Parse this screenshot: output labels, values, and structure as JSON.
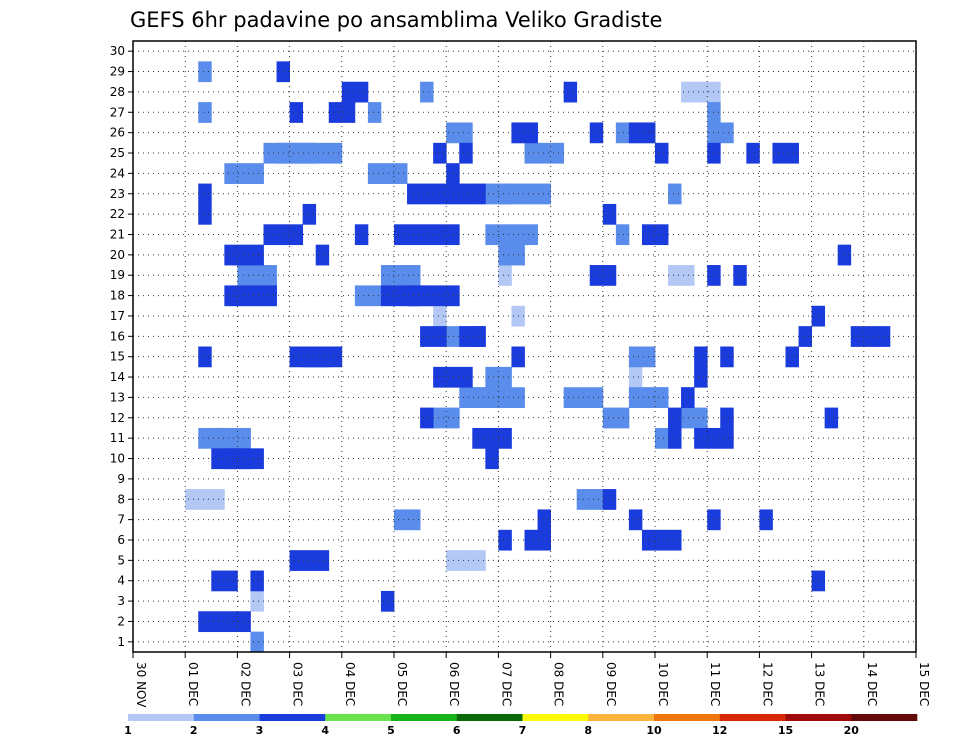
{
  "chart_data": {
    "type": "heatmap",
    "title": "GEFS 6hr padavine po ansamblima Veliko Gradiste",
    "x_tick_labels": [
      "30 NOV",
      "01 DEC",
      "02 DEC",
      "03 DEC",
      "04 DEC",
      "05 DEC",
      "06 DEC",
      "07 DEC",
      "08 DEC",
      "09 DEC",
      "10 DEC",
      "11 DEC",
      "12 DEC",
      "13 DEC",
      "14 DEC",
      "15 DEC"
    ],
    "y_tick_labels": [
      "1",
      "2",
      "3",
      "4",
      "5",
      "6",
      "7",
      "8",
      "9",
      "10",
      "11",
      "12",
      "13",
      "14",
      "15",
      "16",
      "17",
      "18",
      "19",
      "20",
      "21",
      "22",
      "23",
      "24",
      "25",
      "26",
      "27",
      "28",
      "29",
      "30"
    ],
    "x_range_6hr_steps": [
      0,
      60
    ],
    "y_range_members": [
      0,
      30
    ],
    "grid": "dotted",
    "colorbar": {
      "position": "bottom",
      "labels": [
        "1",
        "2",
        "3",
        "4",
        "5",
        "6",
        "7",
        "8",
        "10",
        "12",
        "15",
        "20"
      ],
      "colors": [
        "#b4c8f5",
        "#5a8cec",
        "#1a3cdc",
        "#6ae44c",
        "#16b41a",
        "#0a6a0a",
        "#fafa0a",
        "#fab43c",
        "#f0780a",
        "#d8280a",
        "#a00a0a",
        "#640a0a"
      ]
    },
    "cells": [
      [
        1,
        4,
        8,
        3
      ],
      [
        1,
        6,
        11,
        3
      ],
      [
        1,
        8,
        18,
        3
      ],
      [
        1,
        9,
        3,
        1
      ],
      [
        1,
        23,
        17,
        1
      ],
      [
        1,
        24,
        5,
        3
      ],
      [
        1,
        28,
        19,
        1
      ],
      [
        1,
        29,
        17,
        1
      ],
      [
        1,
        38,
        14,
        1
      ],
      [
        1,
        41,
        19,
        2
      ],
      [
        1,
        42,
        28,
        1
      ],
      [
        1,
        43,
        28,
        1
      ],
      [
        1,
        44,
        28,
        1
      ],
      [
        2,
        5,
        11,
        2
      ],
      [
        2,
        5,
        27,
        1
      ],
      [
        2,
        5,
        29,
        1
      ],
      [
        2,
        6,
        11,
        3
      ],
      [
        2,
        7,
        24,
        3
      ],
      [
        2,
        8,
        19,
        3
      ],
      [
        2,
        9,
        1,
        1
      ],
      [
        2,
        10,
        25,
        4
      ],
      [
        2,
        11,
        25,
        3
      ],
      [
        2,
        14,
        25,
        1
      ],
      [
        2,
        15,
        25,
        1
      ],
      [
        2,
        17,
        18,
        2
      ],
      [
        2,
        18,
        24,
        3
      ],
      [
        2,
        18,
        27,
        1
      ],
      [
        2,
        19,
        19,
        3
      ],
      [
        2,
        20,
        7,
        2
      ],
      [
        2,
        21,
        18,
        2
      ],
      [
        2,
        22,
        28,
        1
      ],
      [
        2,
        23,
        12,
        2
      ],
      [
        2,
        24,
        16,
        2
      ],
      [
        2,
        24,
        26,
        2
      ],
      [
        2,
        25,
        13,
        2
      ],
      [
        2,
        26,
        13,
        2
      ],
      [
        2,
        27,
        14,
        2
      ],
      [
        2,
        27,
        21,
        4
      ],
      [
        2,
        27,
        23,
        5
      ],
      [
        2,
        28,
        13,
        2
      ],
      [
        2,
        28,
        20,
        2
      ],
      [
        2,
        28,
        23,
        1
      ],
      [
        2,
        29,
        26,
        2
      ],
      [
        2,
        30,
        25,
        3
      ],
      [
        2,
        33,
        13,
        3
      ],
      [
        2,
        34,
        8,
        2
      ],
      [
        2,
        36,
        12,
        2
      ],
      [
        2,
        37,
        21,
        1
      ],
      [
        2,
        37,
        26,
        3
      ],
      [
        2,
        38,
        13,
        3
      ],
      [
        2,
        38,
        15,
        2
      ],
      [
        2,
        39,
        13,
        2
      ],
      [
        2,
        40,
        11,
        1
      ],
      [
        2,
        41,
        23,
        1
      ],
      [
        2,
        42,
        12,
        2
      ],
      [
        2,
        42,
        13,
        1
      ],
      [
        2,
        44,
        27,
        1
      ],
      [
        2,
        44,
        26,
        2
      ],
      [
        3,
        5,
        2,
        1
      ],
      [
        3,
        5,
        15,
        1
      ],
      [
        3,
        5,
        22,
        1
      ],
      [
        3,
        5,
        23,
        1
      ],
      [
        3,
        6,
        2,
        3
      ],
      [
        3,
        6,
        4,
        2
      ],
      [
        3,
        6,
        10,
        3
      ],
      [
        3,
        7,
        10,
        3
      ],
      [
        3,
        7,
        18,
        3
      ],
      [
        3,
        7,
        20,
        3
      ],
      [
        3,
        9,
        4,
        1
      ],
      [
        3,
        10,
        18,
        1
      ],
      [
        3,
        10,
        21,
        3
      ],
      [
        3,
        11,
        29,
        1
      ],
      [
        3,
        12,
        5,
        3
      ],
      [
        3,
        12,
        15,
        3
      ],
      [
        3,
        12,
        27,
        1
      ],
      [
        3,
        13,
        15,
        3
      ],
      [
        3,
        13,
        22,
        1
      ],
      [
        3,
        14,
        20,
        1
      ],
      [
        3,
        15,
        27,
        2
      ],
      [
        3,
        16,
        28,
        2
      ],
      [
        3,
        17,
        21,
        1
      ],
      [
        3,
        19,
        3,
        1
      ],
      [
        3,
        19,
        18,
        3
      ],
      [
        3,
        20,
        21,
        3
      ],
      [
        3,
        21,
        18,
        3
      ],
      [
        3,
        21,
        23,
        5
      ],
      [
        3,
        22,
        12,
        1
      ],
      [
        3,
        22,
        16,
        2
      ],
      [
        3,
        23,
        14,
        3
      ],
      [
        3,
        23,
        21,
        2
      ],
      [
        3,
        23,
        25,
        1
      ],
      [
        3,
        24,
        18,
        1
      ],
      [
        3,
        24,
        24,
        1
      ],
      [
        3,
        25,
        16,
        2
      ],
      [
        3,
        25,
        25,
        1
      ],
      [
        3,
        26,
        11,
        3
      ],
      [
        3,
        26,
        16,
        1
      ],
      [
        3,
        26,
        23,
        1
      ],
      [
        3,
        27,
        10,
        1
      ],
      [
        3,
        28,
        6,
        1
      ],
      [
        3,
        29,
        26,
        2
      ],
      [
        3,
        29,
        15,
        1
      ],
      [
        3,
        30,
        6,
        2
      ],
      [
        3,
        31,
        7,
        1
      ],
      [
        3,
        33,
        28,
        1
      ],
      [
        3,
        35,
        19,
        2
      ],
      [
        3,
        35,
        26,
        1
      ],
      [
        3,
        36,
        8,
        1
      ],
      [
        3,
        36,
        22,
        1
      ],
      [
        3,
        38,
        7,
        1
      ],
      [
        3,
        38,
        26,
        2
      ],
      [
        3,
        39,
        21,
        2
      ],
      [
        3,
        39,
        6,
        3
      ],
      [
        3,
        40,
        25,
        1
      ],
      [
        3,
        41,
        11,
        1
      ],
      [
        3,
        41,
        12,
        1
      ],
      [
        3,
        42,
        13,
        1
      ],
      [
        3,
        43,
        15,
        1
      ],
      [
        3,
        43,
        14,
        1
      ],
      [
        3,
        43,
        11,
        2
      ],
      [
        3,
        44,
        25,
        1
      ],
      [
        3,
        44,
        19,
        1
      ],
      [
        3,
        44,
        7,
        1
      ],
      [
        3,
        45,
        11,
        1
      ],
      [
        3,
        45,
        12,
        1
      ],
      [
        3,
        45,
        15,
        1
      ],
      [
        3,
        46,
        19,
        1
      ],
      [
        3,
        47,
        25,
        1
      ],
      [
        3,
        48,
        7,
        1
      ],
      [
        3,
        49,
        25,
        2
      ],
      [
        3,
        50,
        15,
        1
      ],
      [
        3,
        51,
        16,
        1
      ],
      [
        3,
        52,
        4,
        1
      ],
      [
        3,
        52,
        17,
        1
      ],
      [
        3,
        53,
        12,
        1
      ],
      [
        3,
        54,
        20,
        1
      ],
      [
        3,
        55,
        16,
        1
      ],
      [
        3,
        56,
        16,
        1
      ],
      [
        3,
        57,
        16,
        1
      ]
    ]
  }
}
